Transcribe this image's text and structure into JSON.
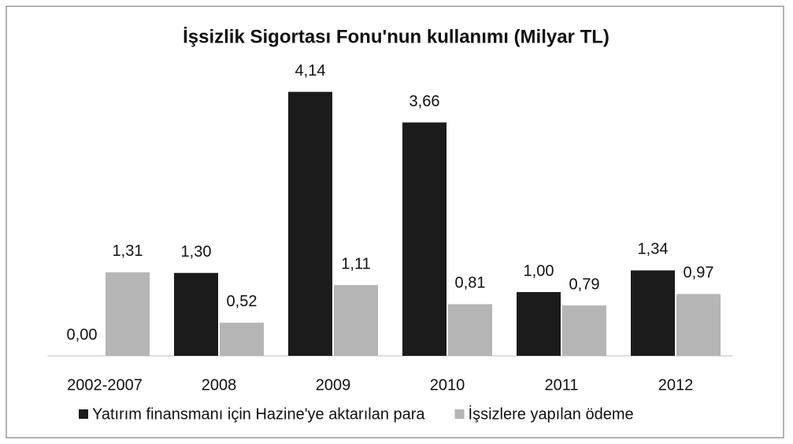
{
  "chart_data": {
    "type": "bar",
    "title": "İşsizlik Sigortası Fonu'nun kullanımı (Milyar TL)",
    "categories": [
      "2002-2007",
      "2008",
      "2009",
      "2010",
      "2011",
      "2012"
    ],
    "series": [
      {
        "name": "Yatırım finansmanı için Hazine'ye aktarılan para",
        "color": "#1b1b1b",
        "values": [
          0,
          1.3,
          4.14,
          3.66,
          1,
          1.34
        ],
        "value_labels": [
          "0,00",
          "1,30",
          "4,14",
          "3,66",
          "1,00",
          "1,34"
        ]
      },
      {
        "name": "İşsizlere yapılan ödeme",
        "color": "#b5b5b5",
        "values": [
          1.31,
          0.52,
          1.11,
          0.81,
          0.79,
          0.97
        ],
        "value_labels": [
          "1,31",
          "0,52",
          "1,11",
          "0,81",
          "0,79",
          "0,97"
        ]
      }
    ],
    "ylim": [
      0,
      4.5
    ],
    "legend": "bottom"
  }
}
